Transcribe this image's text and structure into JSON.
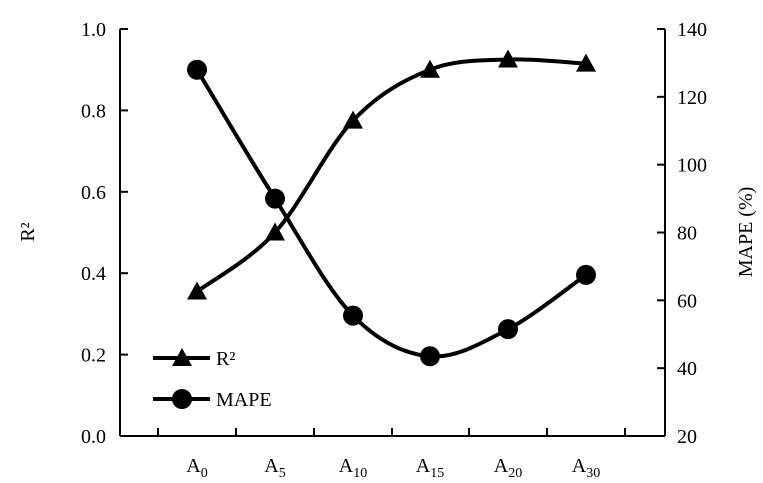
{
  "chart_data": {
    "type": "line",
    "categories": [
      {
        "base": "A",
        "sub": "0"
      },
      {
        "base": "A",
        "sub": "5"
      },
      {
        "base": "A",
        "sub": "10"
      },
      {
        "base": "A",
        "sub": "15"
      },
      {
        "base": "A",
        "sub": "20"
      },
      {
        "base": "A",
        "sub": "30"
      }
    ],
    "left_axis": {
      "label": "R²",
      "ylim": [
        0.0,
        1.0
      ],
      "ticks": [
        "0.0",
        "0.2",
        "0.4",
        "0.6",
        "0.8",
        "1.0"
      ]
    },
    "right_axis": {
      "label": "MAPE (%)",
      "ylim": [
        20,
        140
      ],
      "ticks": [
        "20",
        "40",
        "60",
        "80",
        "100",
        "120",
        "140"
      ]
    },
    "series": [
      {
        "name": "R²",
        "axis": "left",
        "marker": "triangle",
        "values": [
          0.355,
          0.5,
          0.775,
          0.9,
          0.925,
          0.915
        ]
      },
      {
        "name": "MAPE",
        "axis": "right",
        "marker": "circle",
        "values": [
          128,
          90,
          55.5,
          43.5,
          51.5,
          67.5
        ]
      }
    ],
    "legend_position": "bottom-left",
    "grid": false
  }
}
